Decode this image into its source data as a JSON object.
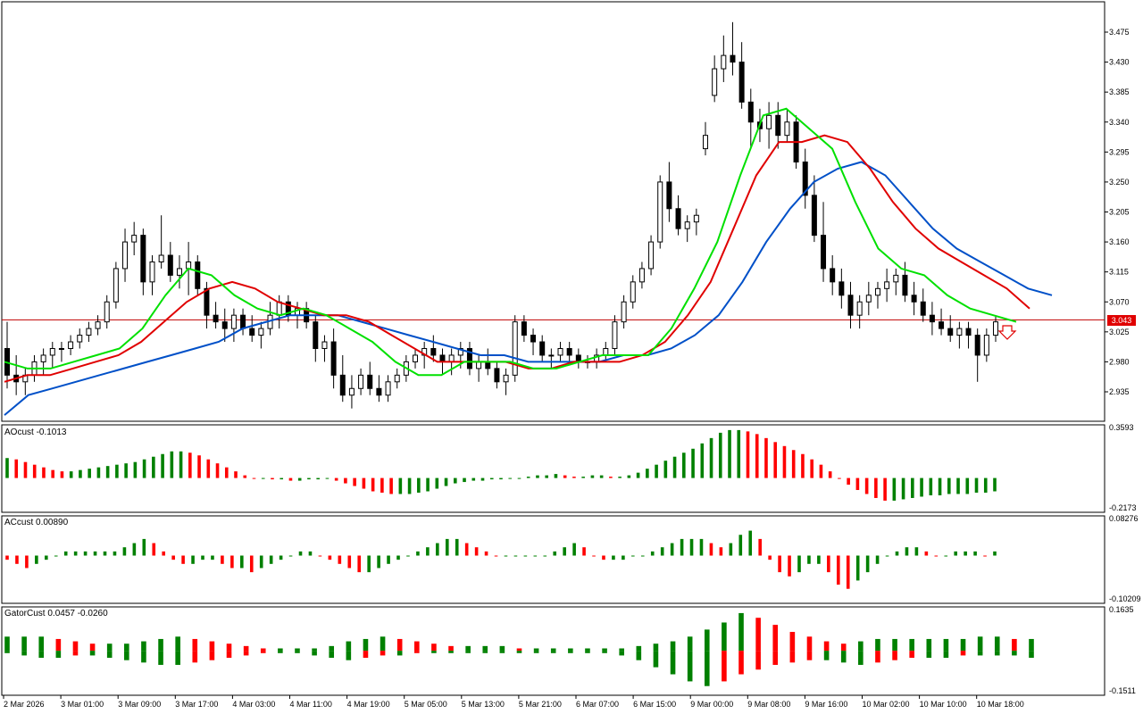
{
  "chart_data": {
    "type": "candlestick",
    "main": {
      "yaxis_ticks": [
        "3.475",
        "3.430",
        "3.385",
        "3.340",
        "3.295",
        "3.250",
        "3.205",
        "3.160",
        "3.115",
        "3.070",
        "3.025",
        "2.980",
        "2.935"
      ],
      "y_range": [
        2.91,
        3.5
      ],
      "current_price": "3.043",
      "current_price_value": 3.043,
      "ohlc": [
        [
          3.0,
          3.04,
          2.94,
          2.96
        ],
        [
          2.96,
          2.99,
          2.93,
          2.95
        ],
        [
          2.95,
          2.97,
          2.93,
          2.96
        ],
        [
          2.96,
          2.99,
          2.95,
          2.98
        ],
        [
          2.98,
          3.0,
          2.96,
          2.99
        ],
        [
          2.99,
          3.01,
          2.97,
          3.0
        ],
        [
          3.0,
          3.01,
          2.98,
          3.0
        ],
        [
          3.0,
          3.02,
          2.99,
          3.01
        ],
        [
          3.01,
          3.03,
          3.0,
          3.02
        ],
        [
          3.02,
          3.04,
          3.01,
          3.03
        ],
        [
          3.03,
          3.05,
          3.02,
          3.04
        ],
        [
          3.04,
          3.08,
          3.03,
          3.07
        ],
        [
          3.07,
          3.13,
          3.06,
          3.12
        ],
        [
          3.12,
          3.18,
          3.1,
          3.16
        ],
        [
          3.16,
          3.19,
          3.14,
          3.17
        ],
        [
          3.17,
          3.18,
          3.08,
          3.1
        ],
        [
          3.1,
          3.14,
          3.08,
          3.13
        ],
        [
          3.13,
          3.2,
          3.12,
          3.14
        ],
        [
          3.14,
          3.16,
          3.1,
          3.11
        ],
        [
          3.11,
          3.14,
          3.09,
          3.12
        ],
        [
          3.12,
          3.16,
          3.08,
          3.13
        ],
        [
          3.13,
          3.14,
          3.08,
          3.09
        ],
        [
          3.09,
          3.1,
          3.03,
          3.05
        ],
        [
          3.05,
          3.07,
          3.03,
          3.04
        ],
        [
          3.04,
          3.06,
          3.01,
          3.03
        ],
        [
          3.03,
          3.06,
          3.01,
          3.05
        ],
        [
          3.05,
          3.06,
          3.02,
          3.03
        ],
        [
          3.03,
          3.05,
          3.01,
          3.02
        ],
        [
          3.02,
          3.04,
          3.0,
          3.03
        ],
        [
          3.03,
          3.07,
          3.02,
          3.05
        ],
        [
          3.05,
          3.08,
          3.03,
          3.07
        ],
        [
          3.07,
          3.08,
          3.04,
          3.05
        ],
        [
          3.05,
          3.07,
          3.03,
          3.06
        ],
        [
          3.06,
          3.07,
          3.03,
          3.04
        ],
        [
          3.04,
          3.05,
          2.98,
          3.0
        ],
        [
          3.0,
          3.02,
          2.98,
          3.01
        ],
        [
          3.01,
          3.03,
          2.94,
          2.96
        ],
        [
          2.96,
          2.99,
          2.92,
          2.93
        ],
        [
          2.93,
          2.96,
          2.91,
          2.94
        ],
        [
          2.94,
          2.97,
          2.93,
          2.96
        ],
        [
          2.96,
          2.98,
          2.93,
          2.94
        ],
        [
          2.94,
          2.96,
          2.92,
          2.93
        ],
        [
          2.93,
          2.96,
          2.92,
          2.95
        ],
        [
          2.95,
          2.97,
          2.94,
          2.96
        ],
        [
          2.96,
          2.99,
          2.95,
          2.98
        ],
        [
          2.98,
          3.0,
          2.97,
          2.99
        ],
        [
          2.99,
          3.01,
          2.97,
          3.0
        ],
        [
          3.0,
          3.02,
          2.98,
          2.99
        ],
        [
          2.99,
          3.0,
          2.96,
          2.98
        ],
        [
          2.98,
          3.0,
          2.96,
          2.99
        ],
        [
          2.99,
          3.01,
          2.97,
          3.0
        ],
        [
          3.0,
          3.01,
          2.96,
          2.97
        ],
        [
          2.97,
          2.99,
          2.95,
          2.98
        ],
        [
          2.98,
          3.0,
          2.96,
          2.97
        ],
        [
          2.97,
          2.98,
          2.94,
          2.95
        ],
        [
          2.95,
          2.97,
          2.93,
          2.96
        ],
        [
          2.96,
          3.05,
          2.95,
          3.04
        ],
        [
          3.04,
          3.05,
          3.01,
          3.02
        ],
        [
          3.02,
          3.03,
          2.99,
          3.01
        ],
        [
          3.01,
          3.02,
          2.98,
          2.99
        ],
        [
          2.99,
          3.0,
          2.97,
          2.99
        ],
        [
          2.99,
          3.01,
          2.98,
          3.0
        ],
        [
          3.0,
          3.01,
          2.98,
          2.99
        ],
        [
          2.99,
          3.0,
          2.97,
          2.98
        ],
        [
          2.98,
          2.99,
          2.97,
          2.98
        ],
        [
          2.98,
          3.0,
          2.97,
          2.99
        ],
        [
          2.99,
          3.01,
          2.98,
          3.0
        ],
        [
          3.0,
          3.05,
          2.99,
          3.04
        ],
        [
          3.04,
          3.08,
          3.03,
          3.07
        ],
        [
          3.07,
          3.11,
          3.06,
          3.1
        ],
        [
          3.1,
          3.13,
          3.09,
          3.12
        ],
        [
          3.12,
          3.17,
          3.11,
          3.16
        ],
        [
          3.16,
          3.26,
          3.15,
          3.25
        ],
        [
          3.25,
          3.28,
          3.19,
          3.21
        ],
        [
          3.21,
          3.23,
          3.17,
          3.18
        ],
        [
          3.18,
          3.2,
          3.16,
          3.19
        ],
        [
          3.19,
          3.21,
          3.17,
          3.2
        ],
        [
          3.3,
          3.34,
          3.29,
          3.32
        ],
        [
          3.38,
          3.44,
          3.37,
          3.42
        ],
        [
          3.42,
          3.47,
          3.4,
          3.44
        ],
        [
          3.44,
          3.49,
          3.41,
          3.43
        ],
        [
          3.43,
          3.46,
          3.36,
          3.37
        ],
        [
          3.37,
          3.39,
          3.3,
          3.34
        ],
        [
          3.34,
          3.36,
          3.31,
          3.33
        ],
        [
          3.33,
          3.37,
          3.3,
          3.35
        ],
        [
          3.35,
          3.37,
          3.3,
          3.32
        ],
        [
          3.32,
          3.36,
          3.31,
          3.34
        ],
        [
          3.34,
          3.35,
          3.27,
          3.28
        ],
        [
          3.28,
          3.3,
          3.21,
          3.23
        ],
        [
          3.23,
          3.26,
          3.16,
          3.17
        ],
        [
          3.17,
          3.22,
          3.1,
          3.12
        ],
        [
          3.12,
          3.14,
          3.08,
          3.1
        ],
        [
          3.1,
          3.12,
          3.06,
          3.08
        ],
        [
          3.08,
          3.1,
          3.03,
          3.05
        ],
        [
          3.05,
          3.08,
          3.03,
          3.07
        ],
        [
          3.07,
          3.1,
          3.05,
          3.08
        ],
        [
          3.08,
          3.1,
          3.06,
          3.09
        ],
        [
          3.09,
          3.12,
          3.07,
          3.1
        ],
        [
          3.1,
          3.12,
          3.08,
          3.11
        ],
        [
          3.11,
          3.13,
          3.07,
          3.08
        ],
        [
          3.08,
          3.1,
          3.05,
          3.07
        ],
        [
          3.07,
          3.09,
          3.04,
          3.05
        ],
        [
          3.05,
          3.07,
          3.02,
          3.04
        ],
        [
          3.04,
          3.06,
          3.02,
          3.03
        ],
        [
          3.03,
          3.05,
          3.01,
          3.02
        ],
        [
          3.02,
          3.04,
          3.0,
          3.03
        ],
        [
          3.03,
          3.04,
          3.0,
          3.02
        ],
        [
          3.02,
          3.03,
          2.95,
          2.99
        ],
        [
          2.99,
          3.03,
          2.98,
          3.02
        ],
        [
          3.02,
          3.05,
          3.01,
          3.04
        ]
      ],
      "ma_blue": [
        2.9,
        2.93,
        2.94,
        2.95,
        2.96,
        2.97,
        2.98,
        2.99,
        3.0,
        3.01,
        3.03,
        3.04,
        3.05,
        3.05,
        3.05,
        3.04,
        3.03,
        3.02,
        3.01,
        3.0,
        2.99,
        2.99,
        2.98,
        2.98,
        2.98,
        2.98,
        2.99,
        2.99,
        3.0,
        3.02,
        3.05,
        3.1,
        3.16,
        3.21,
        3.25,
        3.27,
        3.28,
        3.26,
        3.22,
        3.18,
        3.15,
        3.13,
        3.11,
        3.09,
        3.08
      ],
      "ma_red": [
        2.95,
        2.96,
        2.96,
        2.97,
        2.98,
        2.99,
        3.01,
        3.04,
        3.07,
        3.09,
        3.1,
        3.09,
        3.07,
        3.06,
        3.05,
        3.05,
        3.04,
        3.02,
        3.0,
        2.98,
        2.98,
        2.98,
        2.98,
        2.97,
        2.97,
        2.98,
        2.98,
        2.98,
        2.99,
        3.01,
        3.05,
        3.1,
        3.18,
        3.26,
        3.31,
        3.31,
        3.32,
        3.31,
        3.27,
        3.22,
        3.18,
        3.15,
        3.13,
        3.11,
        3.09,
        3.06
      ],
      "ma_green": [
        2.98,
        2.97,
        2.97,
        2.98,
        2.99,
        3.0,
        3.03,
        3.08,
        3.12,
        3.11,
        3.08,
        3.06,
        3.05,
        3.06,
        3.05,
        3.03,
        3.01,
        2.98,
        2.96,
        2.96,
        2.98,
        2.98,
        2.98,
        2.97,
        2.97,
        2.98,
        2.99,
        2.99,
        2.99,
        3.03,
        3.09,
        3.16,
        3.26,
        3.35,
        3.36,
        3.33,
        3.3,
        3.22,
        3.15,
        3.12,
        3.11,
        3.08,
        3.06,
        3.05,
        3.04
      ]
    },
    "subpanes": [
      {
        "label": "AOcust -0.1013",
        "ymax": "0.3593",
        "ymin": "-0.2173",
        "range": [
          -0.2173,
          0.3593
        ],
        "values": [
          0.15,
          0.14,
          0.12,
          0.1,
          0.08,
          0.06,
          0.05,
          0.05,
          0.06,
          0.07,
          0.08,
          0.09,
          0.1,
          0.11,
          0.12,
          0.14,
          0.16,
          0.18,
          0.2,
          0.2,
          0.19,
          0.17,
          0.14,
          0.11,
          0.08,
          0.05,
          0.02,
          0.0,
          0.0,
          -0.01,
          -0.01,
          -0.02,
          -0.02,
          -0.01,
          -0.01,
          0.0,
          -0.02,
          -0.04,
          -0.06,
          -0.08,
          -0.1,
          -0.11,
          -0.12,
          -0.12,
          -0.12,
          -0.11,
          -0.1,
          -0.08,
          -0.06,
          -0.04,
          -0.03,
          -0.02,
          -0.02,
          -0.01,
          -0.01,
          0.0,
          0.0,
          0.01,
          0.02,
          0.02,
          0.03,
          0.02,
          0.01,
          0.01,
          0.02,
          0.02,
          0.01,
          0.01,
          0.02,
          0.04,
          0.07,
          0.1,
          0.13,
          0.16,
          0.19,
          0.22,
          0.26,
          0.3,
          0.34,
          0.36,
          0.36,
          0.35,
          0.33,
          0.3,
          0.27,
          0.24,
          0.21,
          0.18,
          0.14,
          0.1,
          0.05,
          0.0,
          -0.05,
          -0.09,
          -0.12,
          -0.15,
          -0.17,
          -0.17,
          -0.16,
          -0.15,
          -0.14,
          -0.13,
          -0.13,
          -0.12,
          -0.12,
          -0.12,
          -0.11,
          -0.11,
          -0.1
        ]
      },
      {
        "label": "ACcust 0.00890",
        "ymax": "0.08276",
        "ymin": "-0.10209",
        "range": [
          -0.10209,
          0.08276
        ],
        "values": [
          -0.01,
          -0.02,
          -0.03,
          -0.02,
          -0.01,
          0.0,
          0.01,
          0.01,
          0.01,
          0.01,
          0.01,
          0.01,
          0.02,
          0.03,
          0.04,
          0.03,
          0.01,
          -0.01,
          -0.02,
          -0.02,
          -0.01,
          -0.01,
          -0.02,
          -0.03,
          -0.03,
          -0.04,
          -0.03,
          -0.02,
          -0.01,
          0.0,
          0.01,
          0.01,
          0.0,
          -0.01,
          -0.02,
          -0.03,
          -0.04,
          -0.04,
          -0.03,
          -0.02,
          -0.01,
          0.0,
          0.01,
          0.02,
          0.03,
          0.04,
          0.04,
          0.03,
          0.02,
          0.01,
          0.0,
          0.0,
          0.0,
          0.0,
          0.0,
          0.0,
          0.01,
          0.02,
          0.03,
          0.02,
          0.0,
          -0.01,
          -0.01,
          -0.01,
          0.0,
          0.0,
          0.01,
          0.02,
          0.03,
          0.04,
          0.04,
          0.04,
          0.03,
          0.02,
          0.03,
          0.05,
          0.06,
          0.04,
          -0.01,
          -0.04,
          -0.05,
          -0.04,
          -0.02,
          -0.02,
          -0.04,
          -0.07,
          -0.08,
          -0.06,
          -0.04,
          -0.02,
          0.0,
          0.01,
          0.02,
          0.02,
          0.01,
          0.0,
          0.0,
          0.01,
          0.01,
          0.01,
          0.0,
          0.01
        ]
      },
      {
        "label": "GatorCust 0.0457 -0.0260",
        "ymax": "0.1635",
        "ymin": "-0.1511",
        "range": [
          -0.1511,
          0.1635
        ],
        "upper": [
          0.06,
          0.06,
          0.06,
          0.05,
          0.04,
          0.03,
          0.03,
          0.03,
          0.04,
          0.05,
          0.06,
          0.05,
          0.04,
          0.03,
          0.02,
          0.01,
          0.01,
          0.01,
          0.01,
          0.02,
          0.04,
          0.05,
          0.06,
          0.05,
          0.04,
          0.03,
          0.02,
          0.02,
          0.02,
          0.02,
          0.01,
          0.01,
          0.01,
          0.01,
          0.01,
          0.01,
          0.01,
          0.02,
          0.03,
          0.04,
          0.06,
          0.09,
          0.12,
          0.16,
          0.14,
          0.11,
          0.08,
          0.06,
          0.04,
          0.03,
          0.04,
          0.05,
          0.05,
          0.05,
          0.05,
          0.05,
          0.05,
          0.06,
          0.06,
          0.05,
          0.05
        ],
        "lower": [
          -0.01,
          -0.02,
          -0.03,
          -0.03,
          -0.02,
          -0.02,
          -0.03,
          -0.04,
          -0.05,
          -0.06,
          -0.06,
          -0.05,
          -0.04,
          -0.03,
          -0.02,
          -0.01,
          -0.01,
          -0.01,
          -0.02,
          -0.03,
          -0.04,
          -0.03,
          -0.02,
          -0.02,
          -0.01,
          -0.01,
          -0.01,
          -0.01,
          -0.01,
          -0.01,
          -0.01,
          -0.01,
          -0.01,
          -0.01,
          -0.01,
          -0.01,
          -0.02,
          -0.04,
          -0.07,
          -0.1,
          -0.13,
          -0.15,
          -0.13,
          -0.1,
          -0.08,
          -0.06,
          -0.05,
          -0.04,
          -0.04,
          -0.05,
          -0.06,
          -0.05,
          -0.04,
          -0.03,
          -0.03,
          -0.03,
          -0.02,
          -0.02,
          -0.02,
          -0.02,
          -0.03
        ]
      }
    ],
    "x_labels": [
      "2 Mar 2026",
      "3 Mar 01:00",
      "3 Mar 09:00",
      "3 Mar 17:00",
      "4 Mar 03:00",
      "4 Mar 11:00",
      "4 Mar 19:00",
      "5 Mar 05:00",
      "5 Mar 13:00",
      "5 Mar 21:00",
      "6 Mar 07:00",
      "6 Mar 15:00",
      "9 Mar 00:00",
      "9 Mar 08:00",
      "9 Mar 16:00",
      "10 Mar 02:00",
      "10 Mar 10:00",
      "10 Mar 18:00"
    ],
    "colors": {
      "bull": "#008000",
      "bear": "#ff0000",
      "ma_blue": "#0050c8",
      "ma_red": "#e00000",
      "ma_green": "#00e000",
      "price_line": "#c00000"
    }
  }
}
